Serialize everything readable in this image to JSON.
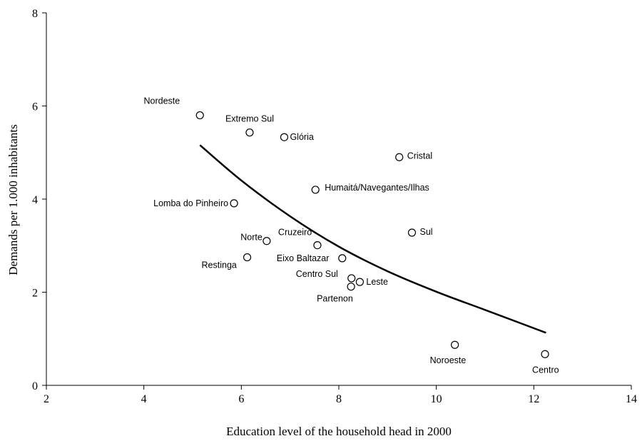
{
  "chart_data": {
    "type": "scatter",
    "xlabel": "Education level of the household head in 2000",
    "ylabel": "Demands per 1.000 inhabitants",
    "xlim": [
      2,
      14
    ],
    "ylim": [
      0,
      8
    ],
    "xticks": [
      "2",
      "4",
      "6",
      "8",
      "10",
      "12",
      "14"
    ],
    "yticks": [
      "0",
      "2",
      "4",
      "6",
      "8"
    ],
    "grid": false,
    "legend": "none",
    "points": [
      {
        "label": "Nordeste",
        "x": 5.15,
        "y": 5.8
      },
      {
        "label": "Extremo Sul",
        "x": 6.17,
        "y": 5.43
      },
      {
        "label": "Glória",
        "x": 6.88,
        "y": 5.33
      },
      {
        "label": "Cristal",
        "x": 9.24,
        "y": 4.9
      },
      {
        "label": "Humaitá/Navegantes/Ilhas",
        "x": 7.52,
        "y": 4.2
      },
      {
        "label": "Lomba do Pinheiro",
        "x": 5.85,
        "y": 3.91
      },
      {
        "label": "Sul",
        "x": 9.5,
        "y": 3.28
      },
      {
        "label": "Norte",
        "x": 6.52,
        "y": 3.1
      },
      {
        "label": "Cruzeiro",
        "x": 7.56,
        "y": 3.01
      },
      {
        "label": "Restinga",
        "x": 6.12,
        "y": 2.75
      },
      {
        "label": "Eixo Baltazar",
        "x": 8.07,
        "y": 2.73
      },
      {
        "label": "Centro Sul",
        "x": 8.26,
        "y": 2.3
      },
      {
        "label": "Leste",
        "x": 8.43,
        "y": 2.22
      },
      {
        "label": "Partenon",
        "x": 8.25,
        "y": 2.12
      },
      {
        "label": "Noroeste",
        "x": 10.38,
        "y": 0.87
      },
      {
        "label": "Centro",
        "x": 12.23,
        "y": 0.67
      }
    ],
    "trend_line": {
      "type": "fitted-curve",
      "x": [
        5.15,
        6.0,
        7.0,
        8.0,
        9.0,
        10.0,
        11.0,
        12.25
      ],
      "y": [
        5.16,
        4.4,
        3.63,
        2.98,
        2.45,
        2.01,
        1.62,
        1.13
      ]
    }
  }
}
